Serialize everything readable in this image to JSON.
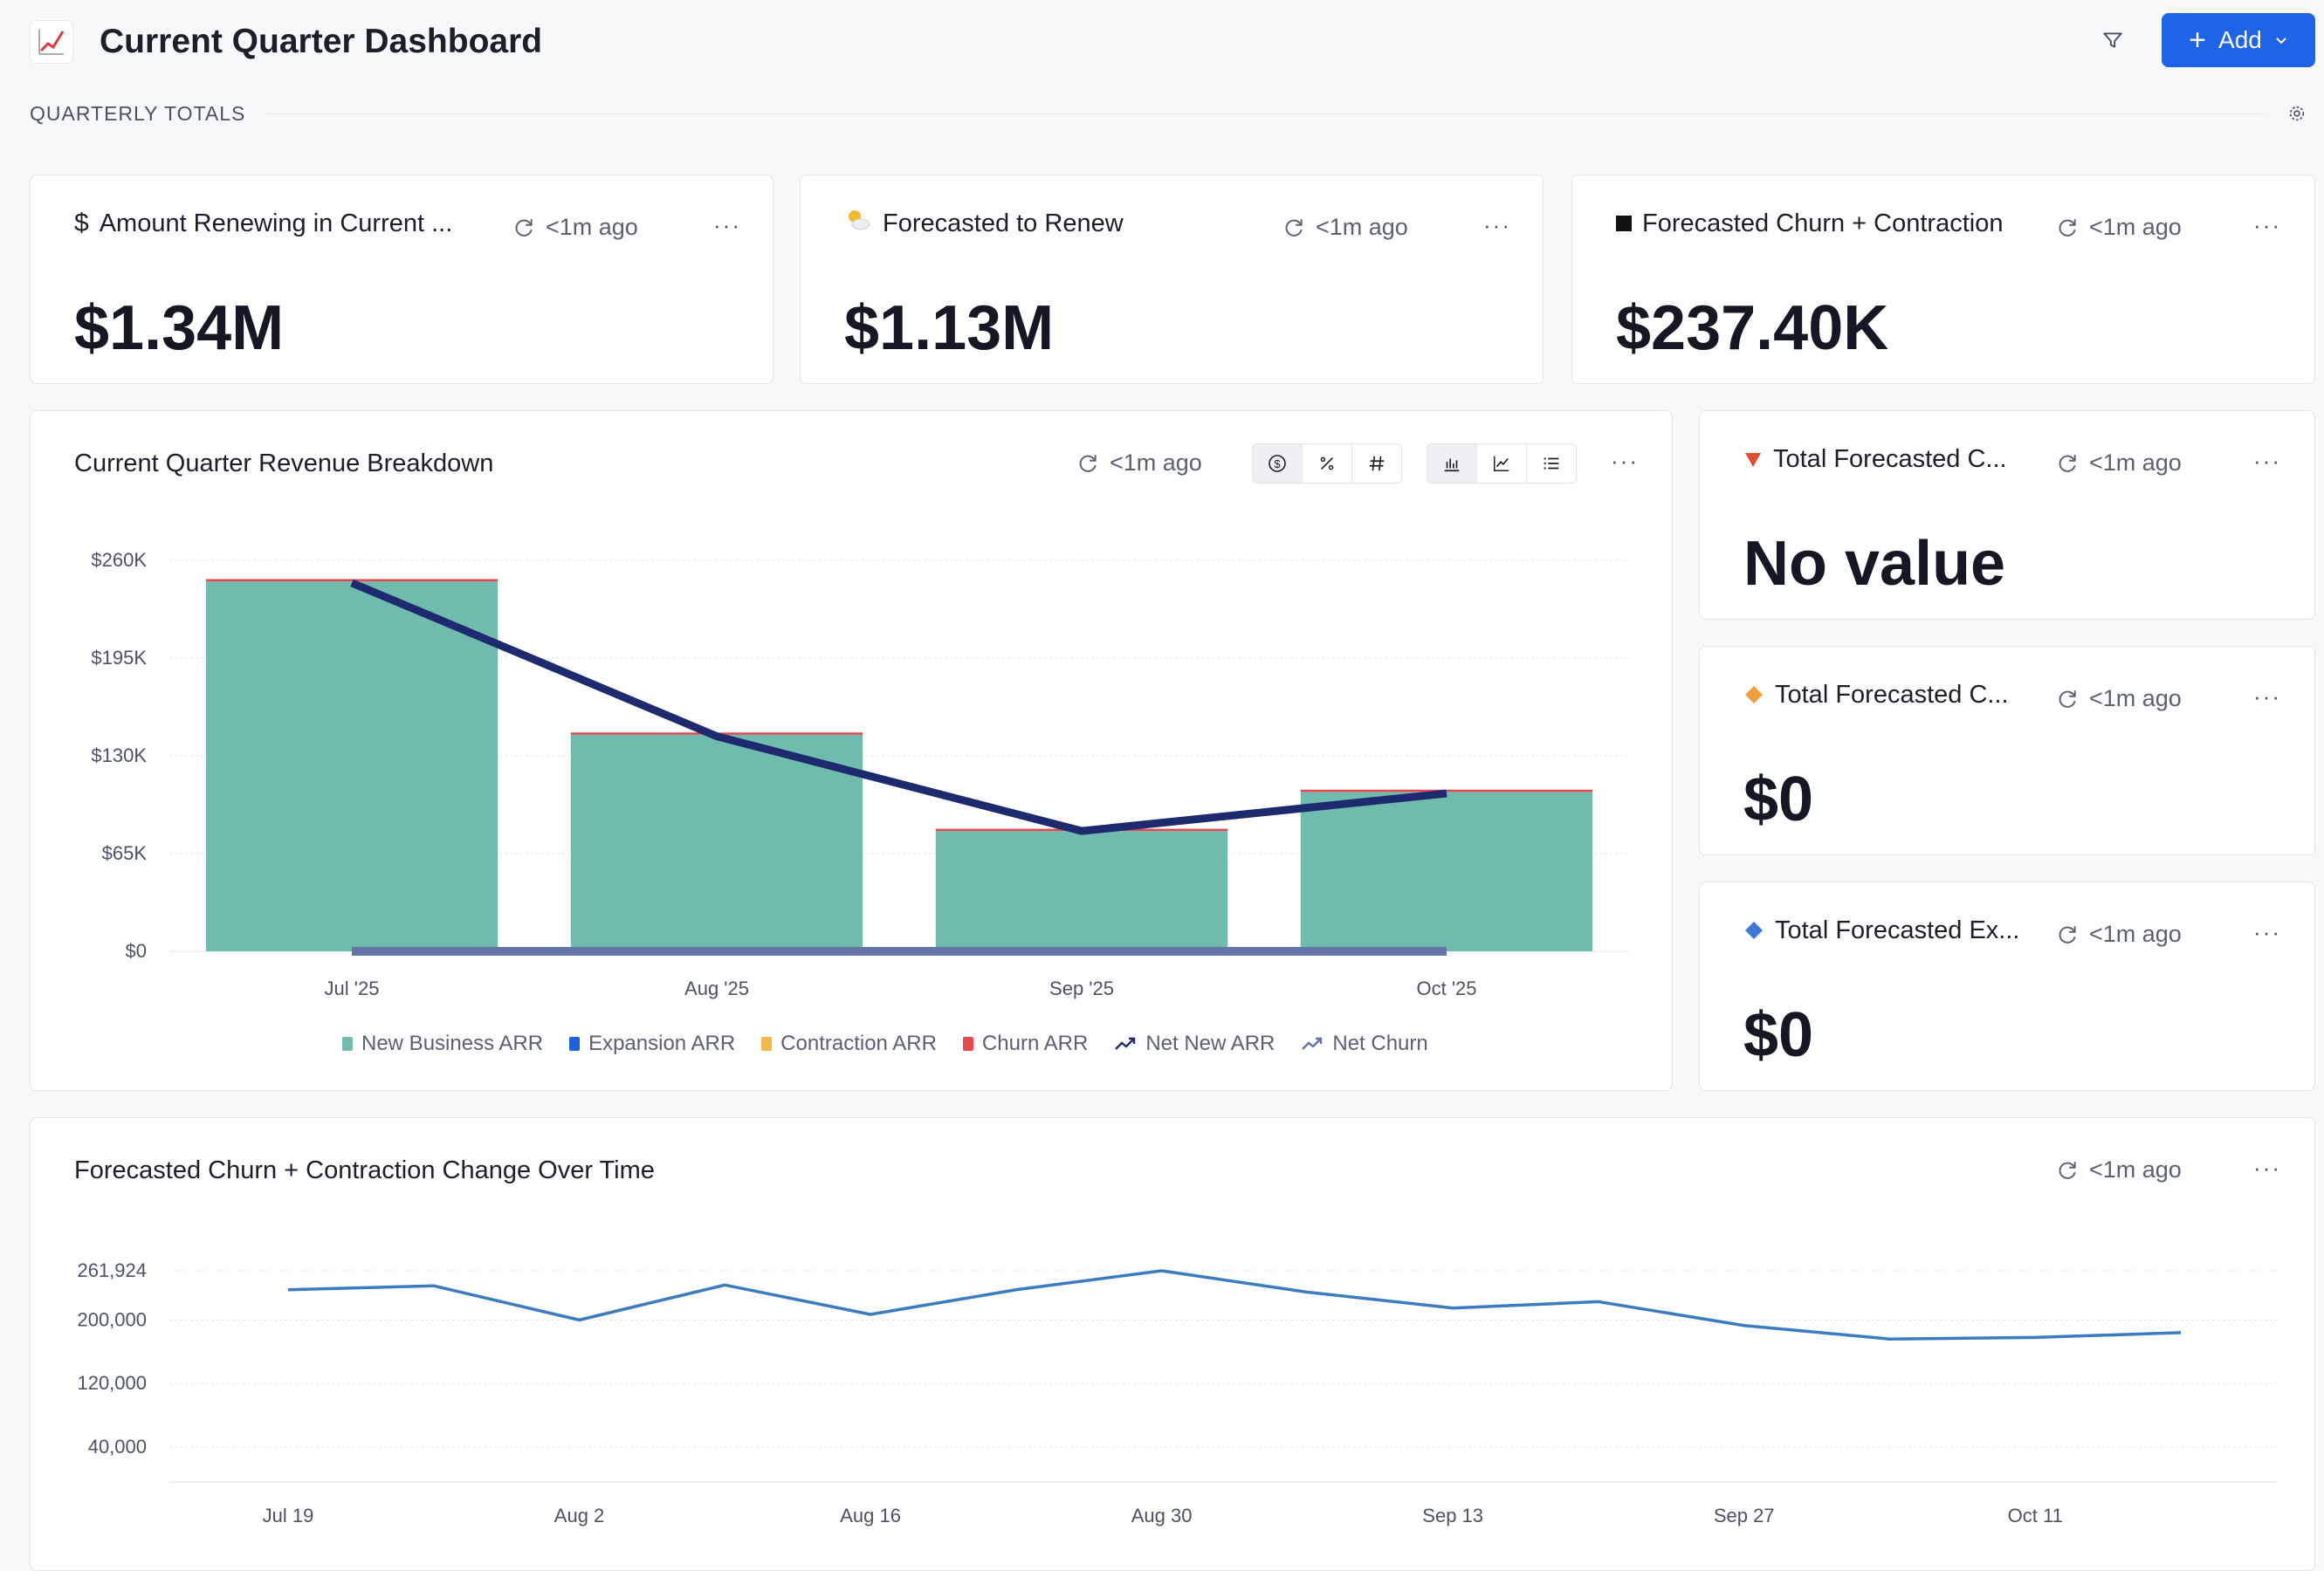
{
  "header": {
    "title": "Current Quarter Dashboard",
    "icon": "chart-increasing-icon",
    "add_label": "Add"
  },
  "section": {
    "label": "QUARTERLY TOTALS"
  },
  "cards": [
    {
      "title": "Amount Renewing in Current ...",
      "icon": "dollar-icon",
      "ago": "<1m ago",
      "value": "$1.34M"
    },
    {
      "title": "Forecasted to Renew",
      "icon": "sun-cloud-icon",
      "ago": "<1m ago",
      "value": "$1.13M"
    },
    {
      "title": "Forecasted Churn + Contraction",
      "icon": "black-square-icon",
      "ago": "<1m ago",
      "value": "$237.40K"
    }
  ],
  "side_cards": [
    {
      "title": "Total Forecasted C...",
      "icon": "red-triangle-down-icon",
      "ago": "<1m ago",
      "value": "No value"
    },
    {
      "title": "Total Forecasted C...",
      "icon": "orange-diamond-icon",
      "ago": "<1m ago",
      "value": "$0"
    },
    {
      "title": "Total Forecasted Ex...",
      "icon": "blue-diamond-icon",
      "ago": "<1m ago",
      "value": "$0"
    }
  ],
  "breakdown": {
    "title": "Current Quarter Revenue Breakdown",
    "ago": "<1m ago",
    "format_buttons": [
      "dollar-format-icon",
      "percent-format-icon",
      "number-format-icon"
    ],
    "view_buttons": [
      "bar-chart-icon",
      "line-chart-icon",
      "list-view-icon"
    ]
  },
  "overtime": {
    "title": "Forecasted Churn + Contraction Change Over Time",
    "ago": "<1m ago"
  },
  "colors": {
    "accent": "#1f63e8",
    "new_business": "#6fbcae",
    "expansion": "#1f5fe0",
    "contraction": "#f1b94a",
    "churn": "#e5484d",
    "net_new": "#1e2a6e",
    "net_churn": "#6474a6",
    "line": "#3b7bbf"
  },
  "chart_data": [
    {
      "type": "bar",
      "title": "Current Quarter Revenue Breakdown",
      "categories": [
        "Jul '25",
        "Aug '25",
        "Sep '25",
        "Oct '25"
      ],
      "ytick_labels": [
        "$0",
        "$65K",
        "$130K",
        "$195K",
        "$260K"
      ],
      "ylim": [
        0,
        260000
      ],
      "stacked": true,
      "series": [
        {
          "name": "New Business ARR",
          "type": "bar",
          "values": [
            246000,
            144000,
            80000,
            106000
          ]
        },
        {
          "name": "Expansion ARR",
          "type": "bar",
          "values": [
            0,
            0,
            0,
            0
          ]
        },
        {
          "name": "Contraction ARR",
          "type": "bar",
          "values": [
            0,
            0,
            0,
            0
          ]
        },
        {
          "name": "Churn ARR",
          "type": "bar",
          "values": [
            1500,
            1500,
            1500,
            1500
          ]
        },
        {
          "name": "Net New ARR",
          "type": "line",
          "values": [
            245000,
            143000,
            80000,
            105000
          ]
        },
        {
          "name": "Net Churn",
          "type": "line",
          "values": [
            0,
            0,
            0,
            0
          ]
        }
      ],
      "legend": "bottom",
      "grid": true
    },
    {
      "type": "line",
      "title": "Forecasted Churn + Contraction Change Over Time",
      "x": [
        "Jul 19",
        "Jul 26",
        "Aug 2",
        "Aug 9",
        "Aug 16",
        "Aug 23",
        "Aug 30",
        "Sep 6",
        "Sep 13",
        "Sep 20",
        "Sep 27",
        "Oct 4",
        "Oct 11",
        "Oct 18"
      ],
      "xtick_labels": [
        "Jul 19",
        "Aug 2",
        "Aug 16",
        "Aug 30",
        "Sep 13",
        "Sep 27",
        "Oct 11"
      ],
      "ytick_labels": [
        "40,000",
        "120,000",
        "200,000",
        "261,924"
      ],
      "ytick_values": [
        40000,
        120000,
        200000,
        261924
      ],
      "series": [
        {
          "values": [
            238000,
            243000,
            200000,
            244000,
            207000,
            238000,
            261924,
            235000,
            215000,
            223000,
            193000,
            176000,
            178000,
            184000
          ]
        }
      ],
      "grid": true
    }
  ]
}
